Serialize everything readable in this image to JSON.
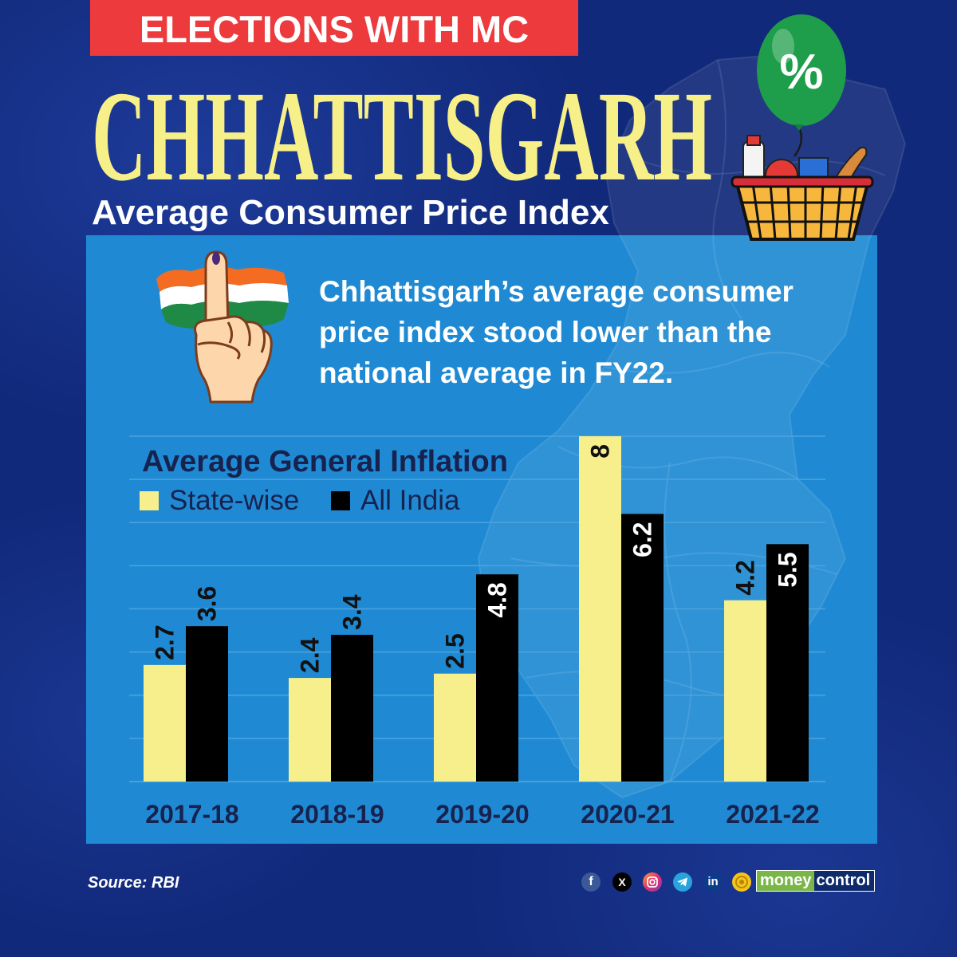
{
  "banner": {
    "text": "ELECTIONS WITH MC"
  },
  "title": "CHHATTISGARH",
  "subtitle": "Average Consumer Price Index",
  "balloon": {
    "symbol": "%"
  },
  "summary": {
    "lines": [
      "Chhattisgarh’s average consumer",
      "price index stood lower than the",
      "national average in FY22."
    ]
  },
  "chart_data": {
    "type": "bar",
    "title": "Average General Inflation",
    "categories": [
      "2017-18",
      "2018-19",
      "2019-20",
      "2020-21",
      "2021-22"
    ],
    "series": [
      {
        "name": "State-wise",
        "color": "#f7ef8c",
        "values": [
          2.7,
          2.4,
          2.5,
          8,
          4.2
        ]
      },
      {
        "name": "All India",
        "color": "#000000",
        "values": [
          3.6,
          3.4,
          4.8,
          6.2,
          5.5
        ]
      }
    ],
    "xlabel": "",
    "ylabel": "",
    "ylim": [
      0,
      8
    ],
    "grid": true,
    "legend": "top-left",
    "data_labels": true
  },
  "footer": {
    "source": "Source: RBI",
    "social_icons": [
      {
        "name": "facebook-icon",
        "glyph": "f"
      },
      {
        "name": "x-icon",
        "glyph": "X"
      },
      {
        "name": "instagram-icon"
      },
      {
        "name": "telegram-icon"
      },
      {
        "name": "linkedin-icon",
        "glyph": "in"
      },
      {
        "name": "coin-icon"
      }
    ],
    "logo": {
      "part1": "money",
      "part2": "control"
    }
  },
  "colors": {
    "background": "#11297a",
    "panel": "#1f8ad3",
    "banner": "#ec3a3d",
    "title": "#f7ef88",
    "chart_text": "#17224e",
    "balloon": "#1e9e4a"
  }
}
